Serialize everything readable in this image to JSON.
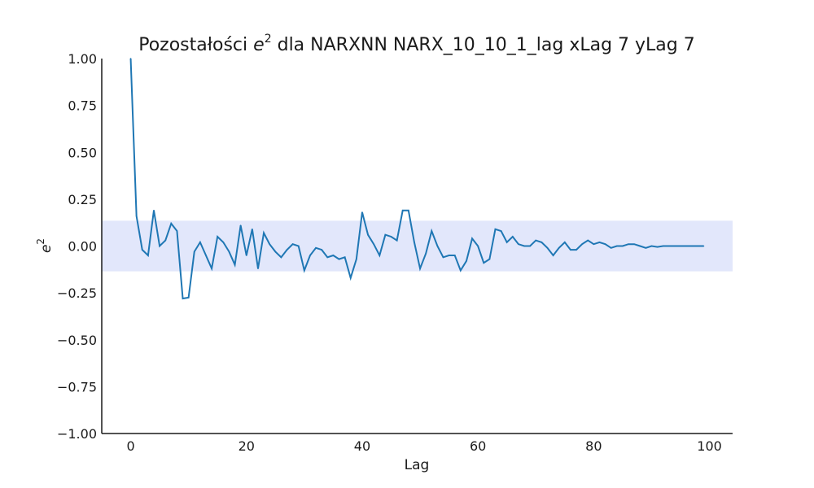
{
  "chart_data": {
    "type": "line",
    "title_prefix": "Pozostałości ",
    "title_var": "e",
    "title_sup": "2",
    "title_suffix": " dla NARXNN NARX_10_10_1_lag xLag 7 yLag 7",
    "xlabel": "Lag",
    "ylabel_var": "e",
    "ylabel_sup": "2",
    "xlim": [
      -5,
      104
    ],
    "ylim": [
      -1.0,
      1.0
    ],
    "x_ticks": [
      0,
      20,
      40,
      60,
      80,
      100
    ],
    "y_ticks": [
      -1.0,
      -0.75,
      -0.5,
      -0.25,
      0.0,
      0.25,
      0.5,
      0.75,
      1.0
    ],
    "y_tick_labels": [
      "−1.00",
      "−0.75",
      "−0.50",
      "−0.25",
      "0.00",
      "0.25",
      "0.50",
      "0.75",
      "1.00"
    ],
    "confidence_band": [
      -0.135,
      0.135
    ],
    "band_color": "#e2e7fb",
    "line_color": "#1f77b4",
    "grid": false,
    "series": [
      {
        "x": [
          0,
          1,
          2,
          3,
          4,
          5,
          6,
          7,
          8,
          9,
          10,
          11,
          12,
          13,
          14,
          15,
          16,
          17,
          18,
          19,
          20,
          21,
          22,
          23,
          24,
          25,
          26,
          27,
          28,
          29,
          30,
          31,
          32,
          33,
          34,
          35,
          36,
          37,
          38,
          39,
          40,
          41,
          42,
          43,
          44,
          45,
          46,
          47,
          48,
          49,
          50,
          51,
          52,
          53,
          54,
          55,
          56,
          57,
          58,
          59,
          60,
          61,
          62,
          63,
          64,
          65,
          66,
          67,
          68,
          69,
          70,
          71,
          72,
          73,
          74,
          75,
          76,
          77,
          78,
          79,
          80,
          81,
          82,
          83,
          84,
          85,
          86,
          87,
          88,
          89,
          90,
          91,
          92,
          93,
          94,
          95,
          96,
          97,
          98,
          99
        ],
        "values": [
          1.0,
          0.16,
          -0.02,
          -0.05,
          0.19,
          0.0,
          0.03,
          0.12,
          0.08,
          -0.28,
          -0.275,
          -0.03,
          0.02,
          -0.05,
          -0.12,
          0.05,
          0.02,
          -0.03,
          -0.1,
          0.11,
          -0.05,
          0.09,
          -0.12,
          0.07,
          0.01,
          -0.03,
          -0.06,
          -0.02,
          0.01,
          0.0,
          -0.13,
          -0.05,
          -0.01,
          -0.02,
          -0.06,
          -0.05,
          -0.07,
          -0.06,
          -0.17,
          -0.07,
          0.18,
          0.06,
          0.01,
          -0.05,
          0.06,
          0.05,
          0.03,
          0.19,
          0.19,
          0.02,
          -0.12,
          -0.04,
          0.08,
          0.0,
          -0.06,
          -0.05,
          -0.05,
          -0.13,
          -0.08,
          0.04,
          0.0,
          -0.09,
          -0.07,
          0.09,
          0.08,
          0.02,
          0.05,
          0.01,
          0.0,
          0.0,
          0.03,
          0.02,
          -0.01,
          -0.05,
          -0.01,
          0.02,
          -0.02,
          -0.02,
          0.01,
          0.03,
          0.01,
          0.02,
          0.01,
          -0.01,
          0.0,
          0.0,
          0.01,
          0.01,
          0.0,
          -0.01,
          0.0,
          -0.005,
          0.0,
          0.0,
          0.0,
          0.0,
          0.0,
          0.0,
          0.0,
          0.0
        ]
      }
    ]
  }
}
